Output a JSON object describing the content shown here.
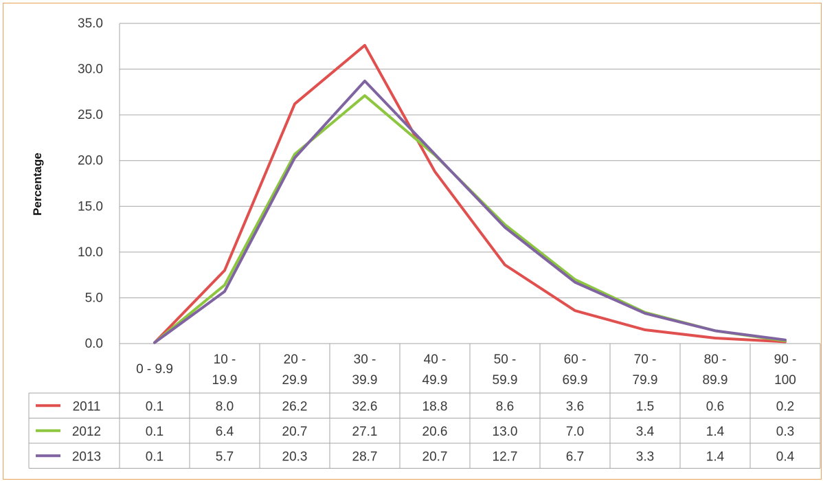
{
  "chart_data": {
    "type": "line",
    "ylabel": "Percentage",
    "xlabel": "",
    "ylim": [
      0,
      35
    ],
    "yticks": [
      "0.0",
      "5.0",
      "10.0",
      "15.0",
      "20.0",
      "25.0",
      "30.0",
      "35.0"
    ],
    "categories": [
      [
        "0 - 9.9"
      ],
      [
        "10 -",
        "19.9"
      ],
      [
        "20 -",
        "29.9"
      ],
      [
        "30 -",
        "39.9"
      ],
      [
        "40 -",
        "49.9"
      ],
      [
        "50 -",
        "59.9"
      ],
      [
        "60 -",
        "69.9"
      ],
      [
        "70 -",
        "79.9"
      ],
      [
        "80 -",
        "89.9"
      ],
      [
        "90 -",
        "100"
      ]
    ],
    "grid": true,
    "legend": "data-table",
    "series": [
      {
        "name": "2011",
        "color": "#e0504f",
        "values": [
          0.1,
          8.0,
          26.2,
          32.6,
          18.8,
          8.6,
          3.6,
          1.5,
          0.6,
          0.2
        ],
        "labels": [
          "0.1",
          "8.0",
          "26.2",
          "32.6",
          "18.8",
          "8.6",
          "3.6",
          "1.5",
          "0.6",
          "0.2"
        ]
      },
      {
        "name": "2012",
        "color": "#8dc63f",
        "values": [
          0.1,
          6.4,
          20.7,
          27.1,
          20.6,
          13.0,
          7.0,
          3.4,
          1.4,
          0.3
        ],
        "labels": [
          "0.1",
          "6.4",
          "20.7",
          "27.1",
          "20.6",
          "13.0",
          "7.0",
          "3.4",
          "1.4",
          "0.3"
        ]
      },
      {
        "name": "2013",
        "color": "#8064a2",
        "values": [
          0.1,
          5.7,
          20.3,
          28.7,
          20.7,
          12.7,
          6.7,
          3.3,
          1.4,
          0.4
        ],
        "labels": [
          "0.1",
          "5.7",
          "20.3",
          "28.7",
          "20.7",
          "12.7",
          "6.7",
          "3.3",
          "1.4",
          "0.4"
        ]
      }
    ]
  }
}
